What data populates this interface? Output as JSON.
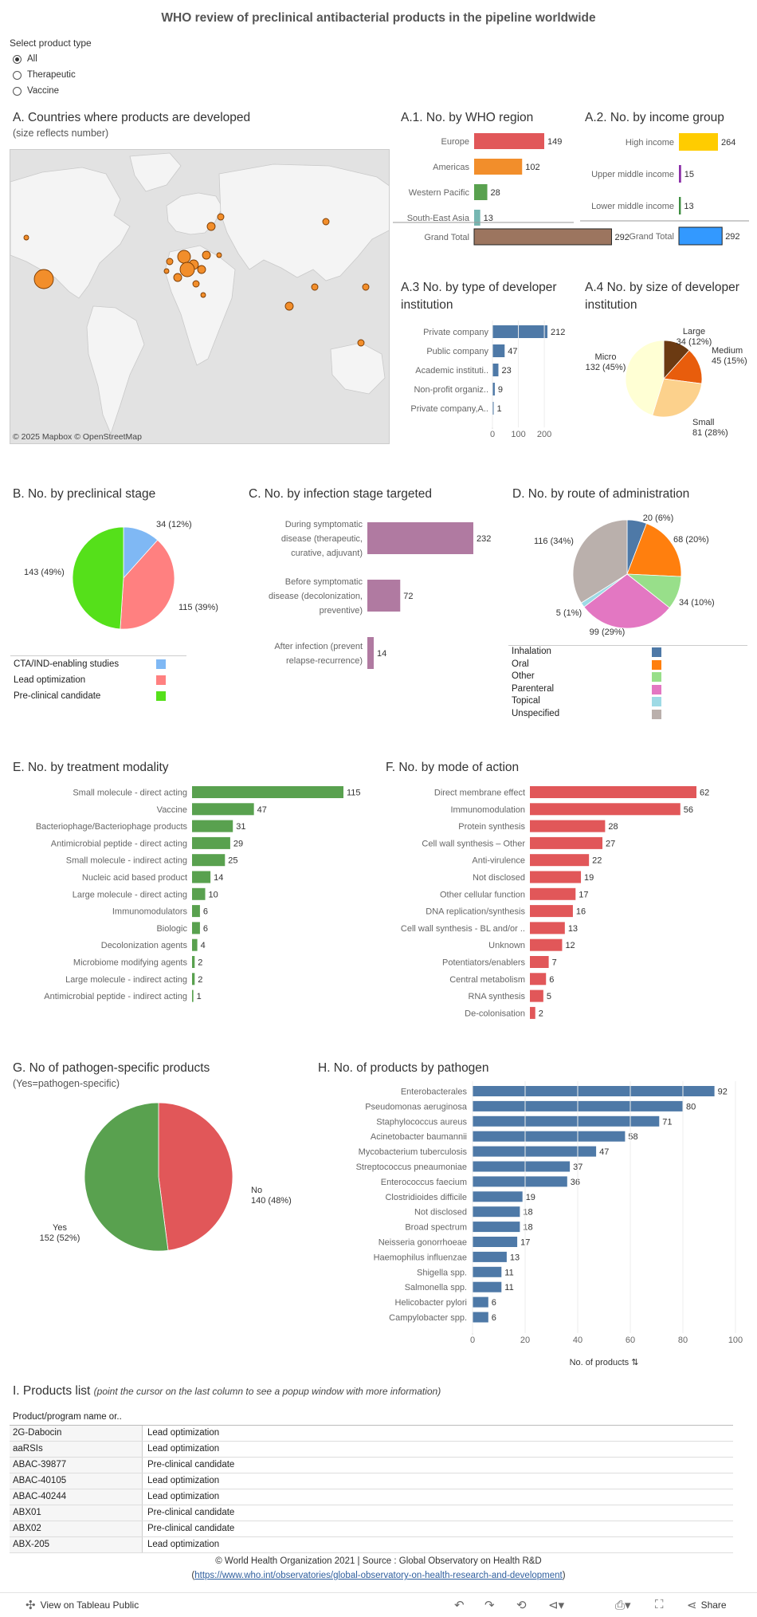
{
  "page": {
    "title": "WHO review of preclinical antibacterial products in the pipeline worldwide",
    "filter_heading": "Select product type",
    "filter_options": [
      "All",
      "Therapeutic",
      "Vaccine"
    ],
    "filter_selected": "All"
  },
  "map": {
    "title": "A. Countries where products are developed",
    "subtitle": "(size reflects number)",
    "attribution": "© 2025 Mapbox  © OpenStreetMap"
  },
  "sections": {
    "a1": "A.1. No. by WHO region",
    "a2": "A.2. No. by income group",
    "a3": "A.3 No. by type of developer institution",
    "a4": "A.4 No. by size of developer institution",
    "b": "B. No. by preclinical stage",
    "c": "C. No. by infection stage targeted",
    "d": "D. No. by route of administration",
    "e": "E. No. by treatment modality",
    "f": "F. No. by mode of action",
    "g": "G. No of pathogen-specific products",
    "g_sub": "(Yes=pathogen-specific)",
    "h": "H. No. of products by pathogen",
    "i": "I. Products list",
    "i_note": "(point the cursor on the last column to see a popup window with more information)"
  },
  "chart_data": [
    {
      "id": "a1",
      "type": "bar",
      "title": "A.1. No. by WHO region",
      "categories": [
        "Europe",
        "Americas",
        "Western Pacific",
        "South-East Asia"
      ],
      "values": [
        149,
        102,
        28,
        13
      ],
      "colors": [
        "#e15759",
        "#f28e2b",
        "#59a14f",
        "#76b7b2"
      ],
      "total_label": "Grand Total",
      "total": 292,
      "total_color": "#9c755f"
    },
    {
      "id": "a2",
      "type": "bar",
      "title": "A.2. No. by income group",
      "categories": [
        "High income",
        "Upper middle income",
        "Lower middle income"
      ],
      "values": [
        264,
        15,
        13
      ],
      "colors": [
        "#ffcc00",
        "#8b2fa8",
        "#3e8e41"
      ],
      "total_label": "Grand Total",
      "total": 292,
      "total_color": "#3399ff"
    },
    {
      "id": "a3",
      "type": "bar",
      "title": "A.3 No. by type of developer institution",
      "categories": [
        "Private company",
        "Public company",
        "Academic instituti..",
        "Non-profit organiz..",
        "Private company,A.."
      ],
      "values": [
        212,
        47,
        23,
        9,
        1
      ],
      "xticks": [
        0,
        100,
        200
      ],
      "color": "#4e79a7"
    },
    {
      "id": "a4",
      "type": "pie",
      "title": "A.4 No. by size of developer institution",
      "slices": [
        {
          "name": "Large",
          "value": 34,
          "label": "34 (12%)",
          "color": "#6b3a12"
        },
        {
          "name": "Medium",
          "value": 45,
          "label": "45 (15%)",
          "color": "#e85d0c"
        },
        {
          "name": "Small",
          "value": 81,
          "label": "81 (28%)",
          "color": "#fcd18c"
        },
        {
          "name": "Micro",
          "value": 132,
          "label": "132 (45%)",
          "color": "#ffffd4"
        }
      ]
    },
    {
      "id": "b",
      "type": "pie",
      "title": "B. No. by preclinical stage",
      "slices": [
        {
          "name": "CTA/IND-enabling studies",
          "value": 34,
          "label": "34 (12%)",
          "color": "#7fb8f4"
        },
        {
          "name": "Lead optimization",
          "value": 115,
          "label": "115 (39%)",
          "color": "#ff8080"
        },
        {
          "name": "Pre-clinical candidate",
          "value": 143,
          "label": "143 (49%)",
          "color": "#55e01a"
        }
      ]
    },
    {
      "id": "c",
      "type": "bar",
      "title": "C. No. by infection stage targeted",
      "categories": [
        [
          "During symptomatic",
          "disease (therapeutic,",
          "curative, adjuvant)"
        ],
        [
          "Before symptomatic",
          "disease (decolonization,",
          "preventive)"
        ],
        [
          "After infection (prevent",
          "relapse-recurrence)"
        ]
      ],
      "values": [
        232,
        72,
        14
      ],
      "color": "#b07aa1"
    },
    {
      "id": "d",
      "type": "pie",
      "title": "D. No. by route of administration",
      "slices": [
        {
          "name": "Inhalation",
          "value": 20,
          "label": "20 (6%)",
          "color": "#4e79a7"
        },
        {
          "name": "Oral",
          "value": 68,
          "label": "68 (20%)",
          "color": "#ff7f0e"
        },
        {
          "name": "Other",
          "value": 34,
          "label": "34 (10%)",
          "color": "#98df8a"
        },
        {
          "name": "Parenteral",
          "value": 99,
          "label": "99 (29%)",
          "color": "#e377c2"
        },
        {
          "name": "Topical",
          "value": 5,
          "label": "5 (1%)",
          "color": "#9edae5"
        },
        {
          "name": "Unspecified",
          "value": 116,
          "label": "116 (34%)",
          "color": "#bab0ac"
        }
      ]
    },
    {
      "id": "e",
      "type": "bar",
      "title": "E. No. by treatment modality",
      "categories": [
        "Small molecule - direct acting",
        "Vaccine",
        "Bacteriophage/Bacteriophage products",
        "Antimicrobial peptide - direct acting",
        "Small molecule - indirect acting",
        "Nucleic acid based product",
        "Large molecule - direct acting",
        "Immunomodulators",
        "Biologic",
        "Decolonization agents",
        "Microbiome modifying agents",
        "Large molecule - indirect acting",
        "Antimicrobial peptide - indirect acting"
      ],
      "values": [
        115,
        47,
        31,
        29,
        25,
        14,
        10,
        6,
        6,
        4,
        2,
        2,
        1
      ],
      "color": "#59a14f"
    },
    {
      "id": "f",
      "type": "bar",
      "title": "F. No. by mode of action",
      "categories": [
        "Direct membrane effect",
        "Immunomodulation",
        "Protein synthesis",
        "Cell wall synthesis – Other",
        "Anti-virulence",
        "Not disclosed",
        "Other cellular function",
        "DNA replication/synthesis",
        "Cell wall synthesis - BL and/or ..",
        "Unknown",
        "Potentiators/enablers",
        "Central metabolism",
        "RNA synthesis",
        "De-colonisation"
      ],
      "values": [
        62,
        56,
        28,
        27,
        22,
        19,
        17,
        16,
        13,
        12,
        7,
        6,
        5,
        2
      ],
      "color": "#e15759"
    },
    {
      "id": "g",
      "type": "pie",
      "title": "G. No of pathogen-specific products",
      "slices": [
        {
          "name": "No",
          "value": 140,
          "label": "140 (48%)",
          "color": "#e15759"
        },
        {
          "name": "Yes",
          "value": 152,
          "label": "152 (52%)",
          "color": "#59a14f"
        }
      ]
    },
    {
      "id": "h",
      "type": "bar",
      "title": "H. No. of products by pathogen",
      "categories": [
        "Enterobacterales",
        "Pseudomonas aeruginosa",
        "Staphylococcus aureus",
        "Acinetobacter baumannii",
        "Mycobacterium tuberculosis",
        "Streptococcus pneaumoniae",
        "Enterococcus faecium",
        "Clostridioides difficile",
        "Not disclosed",
        "Broad spectrum",
        "Neisseria gonorrhoeae",
        "Haemophilus influenzae",
        "Shigella spp.",
        "Salmonella spp.",
        "Helicobacter pylori",
        "Campylobacter spp."
      ],
      "values": [
        92,
        80,
        71,
        58,
        47,
        37,
        36,
        19,
        18,
        18,
        17,
        13,
        11,
        11,
        6,
        6
      ],
      "xticks": [
        0,
        20,
        40,
        60,
        80,
        100
      ],
      "xlabel": "No. of products",
      "color": "#4e79a7"
    }
  ],
  "products_table": {
    "header": "Product/program name or..",
    "rows": [
      [
        "2G-Dabocin",
        "Lead optimization"
      ],
      [
        "aaRSIs",
        "Lead optimization"
      ],
      [
        "ABAC-39877",
        "Pre-clinical candidate"
      ],
      [
        "ABAC-40105",
        "Lead optimization"
      ],
      [
        "ABAC-40244",
        "Lead optimization"
      ],
      [
        "ABX01",
        "Pre-clinical candidate"
      ],
      [
        "ABX02",
        "Pre-clinical candidate"
      ],
      [
        "ABX-205",
        "Lead optimization"
      ]
    ]
  },
  "footer": {
    "line1": "© World Health Organization 2021 | Source : Global Observatory on Health R&D",
    "link": "https://www.who.int/observatories/global-observatory-on-health-research-and-development",
    "paren_open": "(",
    "paren_close": ")"
  },
  "toolbar": {
    "view_label": "View on Tableau Public",
    "share_label": "Share"
  }
}
